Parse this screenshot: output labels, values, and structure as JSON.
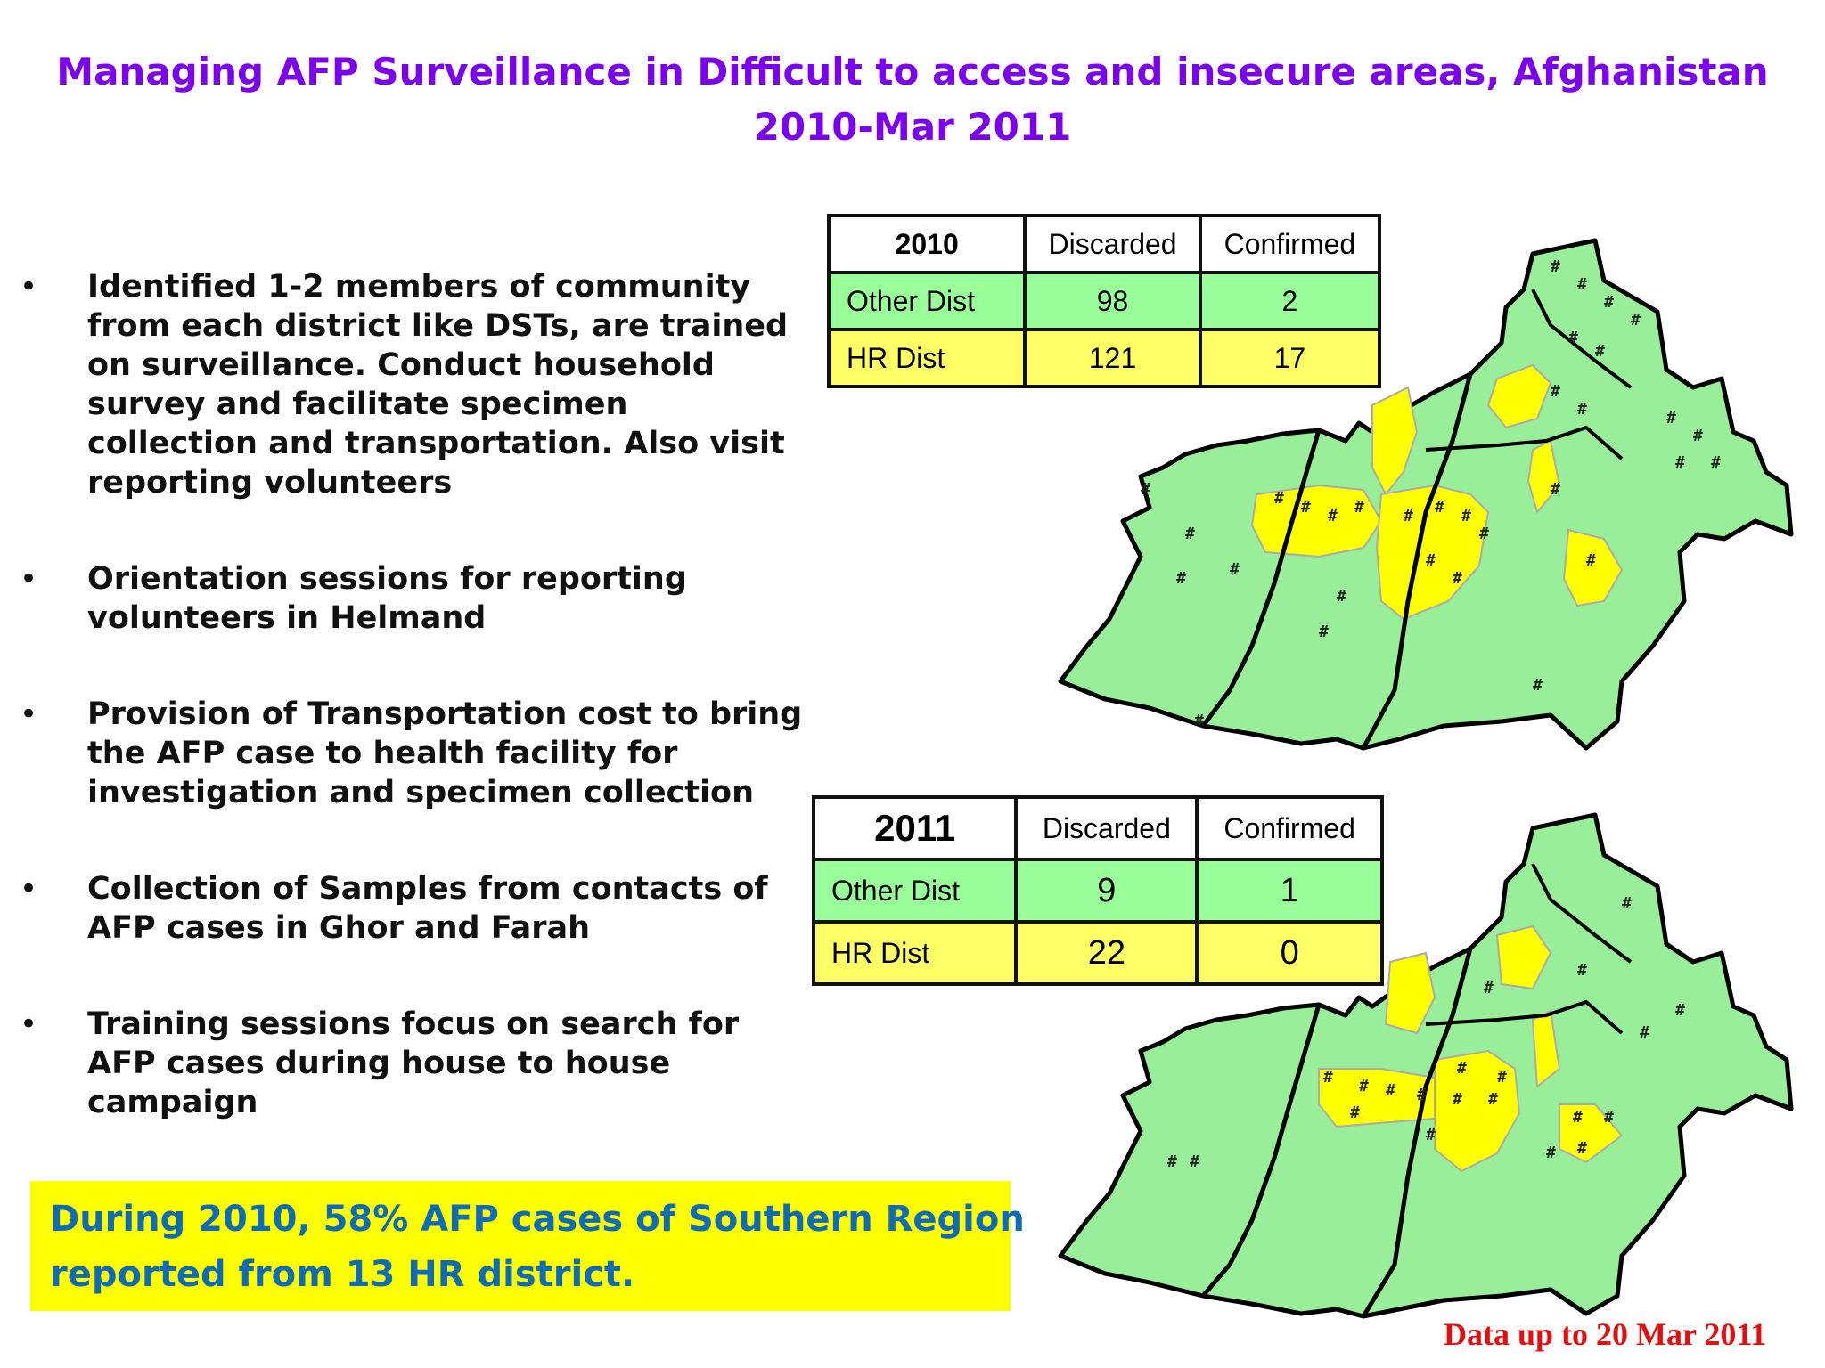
{
  "title": {
    "line1": "Managing AFP Surveillance in Difficult to access and insecure areas, Afghanistan",
    "line2": "2010-Mar 2011"
  },
  "bullets": [
    "Identified 1-2 members of community from each district like DSTs, are trained on surveillance. Conduct household survey and facilitate specimen collection and transportation. Also visit reporting volunteers",
    "Orientation sessions for reporting volunteers  in Helmand",
    "Provision of Transportation cost to bring the AFP case to health facility for investigation and specimen collection",
    "Collection of Samples from contacts of AFP cases in Ghor and Farah",
    "Training sessions focus on search for AFP cases during house to house campaign"
  ],
  "bullet_marker": "•",
  "table_2010": {
    "year": "2010",
    "col_discarded": "Discarded",
    "col_confirmed": "Confirmed",
    "rows": [
      {
        "label": "Other Dist",
        "discarded": "98",
        "confirmed": "2"
      },
      {
        "label": "HR Dist",
        "discarded": "121",
        "confirmed": "17"
      }
    ]
  },
  "table_2011": {
    "year": "2011",
    "col_discarded": "Discarded",
    "col_confirmed": "Confirmed",
    "rows": [
      {
        "label": "Other Dist",
        "discarded": "9",
        "confirmed": "1"
      },
      {
        "label": "HR Dist",
        "discarded": "22",
        "confirmed": "0"
      }
    ]
  },
  "callout": {
    "line1": "During 2010, 58% AFP cases of Southern Region",
    "line2": "reported from 13 HR district."
  },
  "footnote": "Data up to 20 Mar 2011",
  "map_marker_symbol": "#",
  "colors": {
    "title": "#7b00ee",
    "callout_text": "#0f6bb3",
    "callout_bg": "#ffff00",
    "footnote": "#e01010",
    "other_dist_fill": "#99ff99",
    "hr_dist_fill": "#ffff66",
    "map_green": "#99ee99",
    "map_yellow": "#ffff00"
  }
}
